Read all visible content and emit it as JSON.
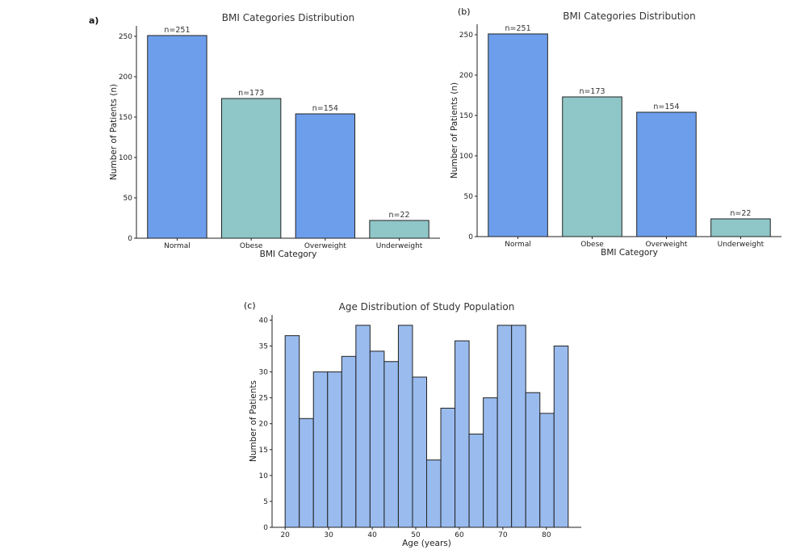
{
  "chart_data": [
    {
      "panel_label": "a)",
      "type": "bar",
      "title": "BMI Categories Distribution",
      "xlabel": "BMI Category",
      "ylabel": "Number of Patients (n)",
      "categories": [
        "Normal",
        "Obese",
        "Overweight",
        "Underweight"
      ],
      "values": [
        251,
        173,
        154,
        22
      ],
      "data_labels": [
        "n=251",
        "n=173",
        "n=154",
        "n=22"
      ],
      "bar_colors": [
        "#6d9eeb",
        "#8fc6c8",
        "#6d9eeb",
        "#8fc6c8"
      ],
      "ylim": [
        0,
        263
      ],
      "yticks": [
        0,
        50,
        100,
        150,
        200,
        250
      ],
      "grid": false
    },
    {
      "panel_label": "(b)",
      "type": "bar",
      "title": "BMI Categories Distribution",
      "xlabel": "BMI Category",
      "ylabel": "Number of Patients (n)",
      "categories": [
        "Normal",
        "Obese",
        "Overweight",
        "Underweight"
      ],
      "values": [
        251,
        173,
        154,
        22
      ],
      "data_labels": [
        "n=251",
        "n=173",
        "n=154",
        "n=22"
      ],
      "bar_colors": [
        "#6d9eeb",
        "#8fc6c8",
        "#6d9eeb",
        "#8fc6c8"
      ],
      "ylim": [
        0,
        263
      ],
      "yticks": [
        0,
        50,
        100,
        150,
        200,
        250
      ],
      "grid": false
    },
    {
      "panel_label": "(c)",
      "type": "bar",
      "subtype": "histogram",
      "title": "Age Distribution of Study Population",
      "xlabel": "Age (years)",
      "ylabel": "Number of Patients",
      "bin_edges": [
        20,
        23.25,
        26.5,
        29.75,
        33,
        36.25,
        39.5,
        42.75,
        46,
        49.25,
        52.5,
        55.75,
        59,
        62.25,
        65.5,
        68.75,
        72,
        75.25,
        78.5,
        81.75,
        85
      ],
      "values": [
        37,
        21,
        30,
        30,
        33,
        39,
        34,
        32,
        39,
        29,
        13,
        23,
        36,
        18,
        25,
        39,
        39,
        26,
        22,
        35
      ],
      "bar_color": "#99bbee",
      "xlim": [
        17,
        88
      ],
      "xticks": [
        20,
        30,
        40,
        50,
        60,
        70,
        80
      ],
      "ylim": [
        0,
        41
      ],
      "yticks": [
        0,
        5,
        10,
        15,
        20,
        25,
        30,
        35,
        40
      ],
      "grid": false
    }
  ]
}
